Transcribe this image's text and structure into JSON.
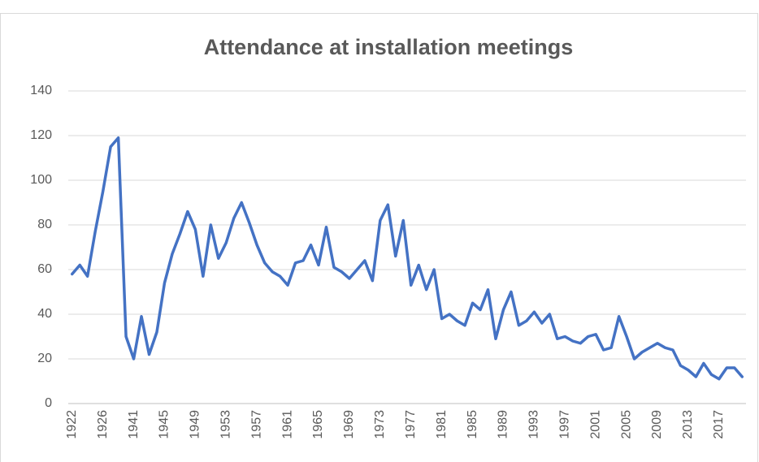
{
  "chart_data": {
    "type": "line",
    "title": "Attendance at installation meetings",
    "categories": [
      "1922",
      null,
      null,
      null,
      "1926",
      null,
      null,
      null,
      "1941",
      null,
      null,
      null,
      "1945",
      null,
      null,
      null,
      "1949",
      null,
      null,
      null,
      "1953",
      null,
      null,
      null,
      "1957",
      null,
      null,
      null,
      "1961",
      null,
      null,
      null,
      "1965",
      null,
      null,
      null,
      "1969",
      null,
      null,
      null,
      "1973",
      null,
      null,
      null,
      "1977",
      null,
      null,
      null,
      "1981",
      null,
      null,
      null,
      "1985",
      null,
      null,
      null,
      "1989",
      null,
      null,
      null,
      "1993",
      null,
      null,
      null,
      "1997",
      null,
      null,
      null,
      "2001",
      null,
      null,
      null,
      "2005",
      null,
      null,
      null,
      "2009",
      null,
      null,
      null,
      "2013",
      null,
      null,
      null,
      "2017",
      null,
      null,
      null
    ],
    "values": [
      58,
      62,
      57,
      77,
      95,
      115,
      119,
      30,
      20,
      39,
      22,
      32,
      54,
      67,
      76,
      86,
      78,
      57,
      80,
      65,
      72,
      83,
      90,
      81,
      71,
      63,
      59,
      57,
      53,
      63,
      64,
      71,
      62,
      79,
      61,
      59,
      56,
      60,
      64,
      55,
      82,
      89,
      66,
      82,
      53,
      62,
      51,
      60,
      38,
      40,
      37,
      35,
      45,
      42,
      51,
      29,
      42,
      50,
      35,
      37,
      41,
      36,
      40,
      29,
      30,
      28,
      27,
      30,
      31,
      24,
      25,
      39,
      30,
      20,
      23,
      25,
      27,
      25,
      24,
      17,
      15,
      12,
      18,
      13,
      11,
      16,
      16,
      12
    ],
    "color": "#4472c4",
    "ylim": [
      0,
      140
    ],
    "yticks": [
      0,
      20,
      40,
      60,
      80,
      100,
      120,
      140
    ],
    "grid": true
  }
}
